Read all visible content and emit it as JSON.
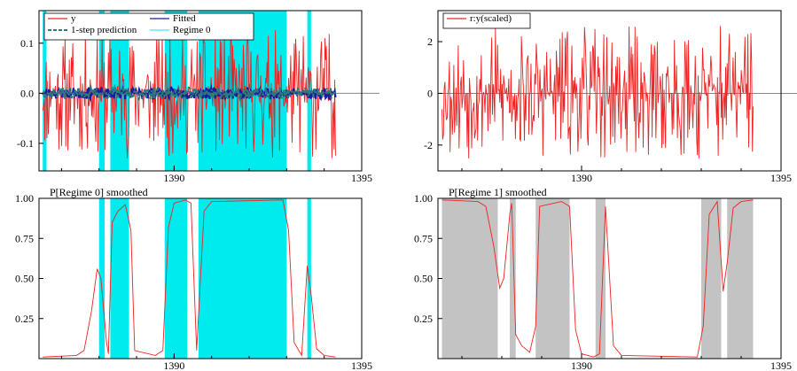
{
  "chart_data": [
    {
      "id": "top_left",
      "type": "line",
      "title": "",
      "xlabel": "",
      "ylabel": "",
      "xlim": [
        1386.4,
        1395
      ],
      "ylim": [
        -0.155,
        0.165
      ],
      "x_ticks": [
        {
          "value": 1390,
          "label": "1390"
        },
        {
          "value": 1395,
          "label": "1395"
        }
      ],
      "y_ticks": [
        {
          "value": 0.1,
          "label": "0.1"
        },
        {
          "value": 0.0,
          "label": "0.0"
        },
        {
          "value": -0.1,
          "label": "-0.1"
        }
      ],
      "legend": {
        "placement": "top-left",
        "entries": [
          {
            "label": "y",
            "color": "#ee2222",
            "style": "solid"
          },
          {
            "label": "Fitted",
            "color": "#1a1aa0",
            "style": "solid"
          },
          {
            "label": "1-step prediction",
            "color": "#2c7a7a",
            "style": "dashed-marker"
          },
          {
            "label": "Regime 0",
            "color": "#40e8e8",
            "style": "solid"
          }
        ]
      },
      "regime_bands": [
        [
          1386.5,
          1386.6
        ],
        [
          1388.0,
          1388.15
        ],
        [
          1388.3,
          1388.8
        ],
        [
          1389.75,
          1390.35
        ],
        [
          1390.65,
          1393.0
        ],
        [
          1393.55,
          1393.65
        ]
      ],
      "band_color": "#00ebee",
      "series": [
        {
          "name": "y",
          "color": "#ee2222",
          "x_start": 1386.5,
          "x_end": 1394.3,
          "amplitude": 0.13,
          "seed": 11
        },
        {
          "name": "Fitted",
          "color": "#1a1aa0",
          "x_start": 1386.5,
          "x_end": 1394.3,
          "amplitude": 0.012,
          "seed": 23
        },
        {
          "name": "1-step prediction",
          "color": "#2c7a7a",
          "x_start": 1386.5,
          "x_end": 1394.3,
          "amplitude": 0.012,
          "seed": 37
        }
      ]
    },
    {
      "id": "top_right",
      "type": "line",
      "title": "",
      "xlabel": "",
      "ylabel": "",
      "xlim": [
        1386.4,
        1395
      ],
      "ylim": [
        -3.0,
        3.2
      ],
      "x_ticks": [
        {
          "value": 1390,
          "label": "1390"
        },
        {
          "value": 1395,
          "label": "1395"
        }
      ],
      "y_ticks": [
        {
          "value": 2,
          "label": "2"
        },
        {
          "value": 0,
          "label": "0"
        },
        {
          "value": -2,
          "label": "-2"
        }
      ],
      "legend": {
        "placement": "top-left",
        "entries": [
          {
            "label": "r:y(scaled)",
            "color": "#ee2222",
            "style": "solid"
          }
        ]
      },
      "series": [
        {
          "name": "r:y(scaled)",
          "color": "#ee2222",
          "x_start": 1386.5,
          "x_end": 1394.3,
          "amplitude": 2.6,
          "seed": 53,
          "style": "spikes"
        }
      ]
    },
    {
      "id": "bottom_left",
      "type": "line",
      "title": "P[Regime 0] smoothed",
      "xlabel": "",
      "ylabel": "",
      "xlim": [
        1386.4,
        1395
      ],
      "ylim": [
        0,
        1.0
      ],
      "x_ticks": [
        {
          "value": 1390,
          "label": "1390"
        },
        {
          "value": 1395,
          "label": "1395"
        }
      ],
      "y_ticks": [
        {
          "value": 1.0,
          "label": "1.00"
        },
        {
          "value": 0.75,
          "label": "0.75"
        },
        {
          "value": 0.5,
          "label": "0.50"
        },
        {
          "value": 0.25,
          "label": "0.25"
        }
      ],
      "regime_bands": [
        [
          1388.0,
          1388.15
        ],
        [
          1388.3,
          1388.8
        ],
        [
          1389.75,
          1390.35
        ],
        [
          1390.65,
          1393.0
        ],
        [
          1393.55,
          1393.65
        ]
      ],
      "band_color": "#00ebee",
      "series": [
        {
          "name": "P[Regime 0] smoothed",
          "color": "#ee2222",
          "x": [
            1386.5,
            1387.4,
            1387.6,
            1387.8,
            1387.95,
            1388.05,
            1388.2,
            1388.25,
            1388.35,
            1388.5,
            1388.7,
            1388.85,
            1388.95,
            1389.5,
            1389.7,
            1389.85,
            1390.0,
            1390.3,
            1390.45,
            1390.6,
            1390.8,
            1391.0,
            1392.9,
            1393.05,
            1393.2,
            1393.4,
            1393.55,
            1393.65,
            1393.8,
            1394.0,
            1394.3
          ],
          "y": [
            0.01,
            0.02,
            0.05,
            0.3,
            0.56,
            0.5,
            0.1,
            0.03,
            0.85,
            0.92,
            0.96,
            0.8,
            0.05,
            0.02,
            0.05,
            0.82,
            0.97,
            0.99,
            0.97,
            0.05,
            0.92,
            0.98,
            0.99,
            0.8,
            0.1,
            0.02,
            0.58,
            0.4,
            0.06,
            0.02,
            0.01
          ]
        }
      ]
    },
    {
      "id": "bottom_right",
      "type": "line",
      "title": "P[Regime 1] smoothed",
      "xlabel": "",
      "ylabel": "",
      "xlim": [
        1386.4,
        1395
      ],
      "ylim": [
        0,
        1.0
      ],
      "x_ticks": [
        {
          "value": 1390,
          "label": "1390"
        },
        {
          "value": 1395,
          "label": "1395"
        }
      ],
      "y_ticks": [
        {
          "value": 1.0,
          "label": "1.00"
        },
        {
          "value": 0.75,
          "label": "0.75"
        },
        {
          "value": 0.5,
          "label": "0.50"
        },
        {
          "value": 0.25,
          "label": "0.25"
        }
      ],
      "regime_bands": [
        [
          1386.5,
          1387.9
        ],
        [
          1388.2,
          1388.35
        ],
        [
          1388.85,
          1389.7
        ],
        [
          1390.35,
          1390.6
        ],
        [
          1393.0,
          1393.5
        ],
        [
          1393.65,
          1394.3
        ]
      ],
      "band_color": "#c3c3c3",
      "series": [
        {
          "name": "P[Regime 1] smoothed",
          "color": "#ee2222",
          "x": [
            1386.5,
            1387.4,
            1387.6,
            1387.8,
            1387.95,
            1388.05,
            1388.2,
            1388.25,
            1388.35,
            1388.5,
            1388.7,
            1388.85,
            1388.95,
            1389.5,
            1389.7,
            1389.85,
            1390.0,
            1390.3,
            1390.45,
            1390.6,
            1390.8,
            1391.0,
            1392.9,
            1393.05,
            1393.2,
            1393.4,
            1393.55,
            1393.65,
            1393.8,
            1394.0,
            1394.3
          ],
          "y": [
            0.99,
            0.98,
            0.95,
            0.7,
            0.44,
            0.5,
            0.9,
            0.97,
            0.15,
            0.08,
            0.04,
            0.2,
            0.95,
            0.98,
            0.95,
            0.18,
            0.03,
            0.01,
            0.03,
            0.95,
            0.08,
            0.02,
            0.01,
            0.2,
            0.9,
            0.98,
            0.42,
            0.6,
            0.94,
            0.98,
            0.99
          ]
        }
      ]
    }
  ]
}
